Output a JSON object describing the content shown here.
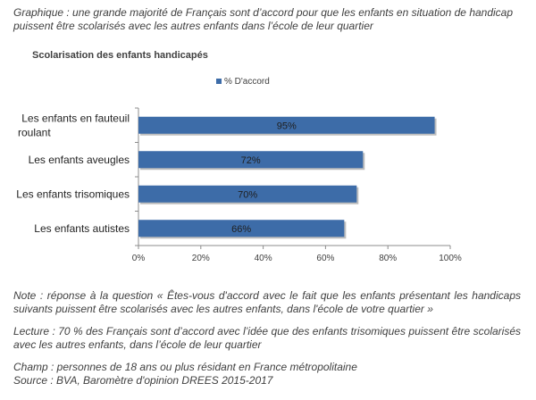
{
  "caption": "Graphique : une grande majorité de Français sont d’accord pour que les enfants en situation de handicap puissent être scolarisés avec les autres enfants dans l’école de leur quartier",
  "chart_data": {
    "type": "bar",
    "orientation": "horizontal",
    "title": "Scolarisation des enfants handicapés",
    "categories": [
      "Les enfants en fauteuil roulant",
      "Les enfants aveugles",
      "Les enfants trisomiques",
      "Les enfants autistes"
    ],
    "category_lines": [
      [
        "Les enfants en fauteuil",
        "roulant"
      ],
      [
        "Les enfants aveugles"
      ],
      [
        "Les enfants trisomiques"
      ],
      [
        "Les enfants autistes"
      ]
    ],
    "series": [
      {
        "name": "% D'accord",
        "values": [
          95,
          72,
          70,
          66
        ],
        "color": "#3d6ca8"
      }
    ],
    "data_labels": [
      "95%",
      "72%",
      "70%",
      "66%"
    ],
    "xlim": [
      0,
      100
    ],
    "x_ticks": [
      "0%",
      "20%",
      "40%",
      "60%",
      "80%",
      "100%"
    ],
    "legend_position": "top",
    "grid": false
  },
  "notes": [
    "Note : réponse à la question « Êtes-vous d'accord avec le fait que les enfants présentant les handicaps suivants puissent être scolarisés avec les autres enfants, dans l'école de votre quartier »",
    "Lecture : 70 % des Français sont d’accord avec l’idée que des enfants trisomiques puissent être scolarisés avec les autres enfants, dans l’école de leur quartier",
    "Champ : personnes de 18 ans ou plus résidant en France métropolitaine",
    "Source : BVA, Baromètre d'opinion DREES 2015-2017"
  ]
}
